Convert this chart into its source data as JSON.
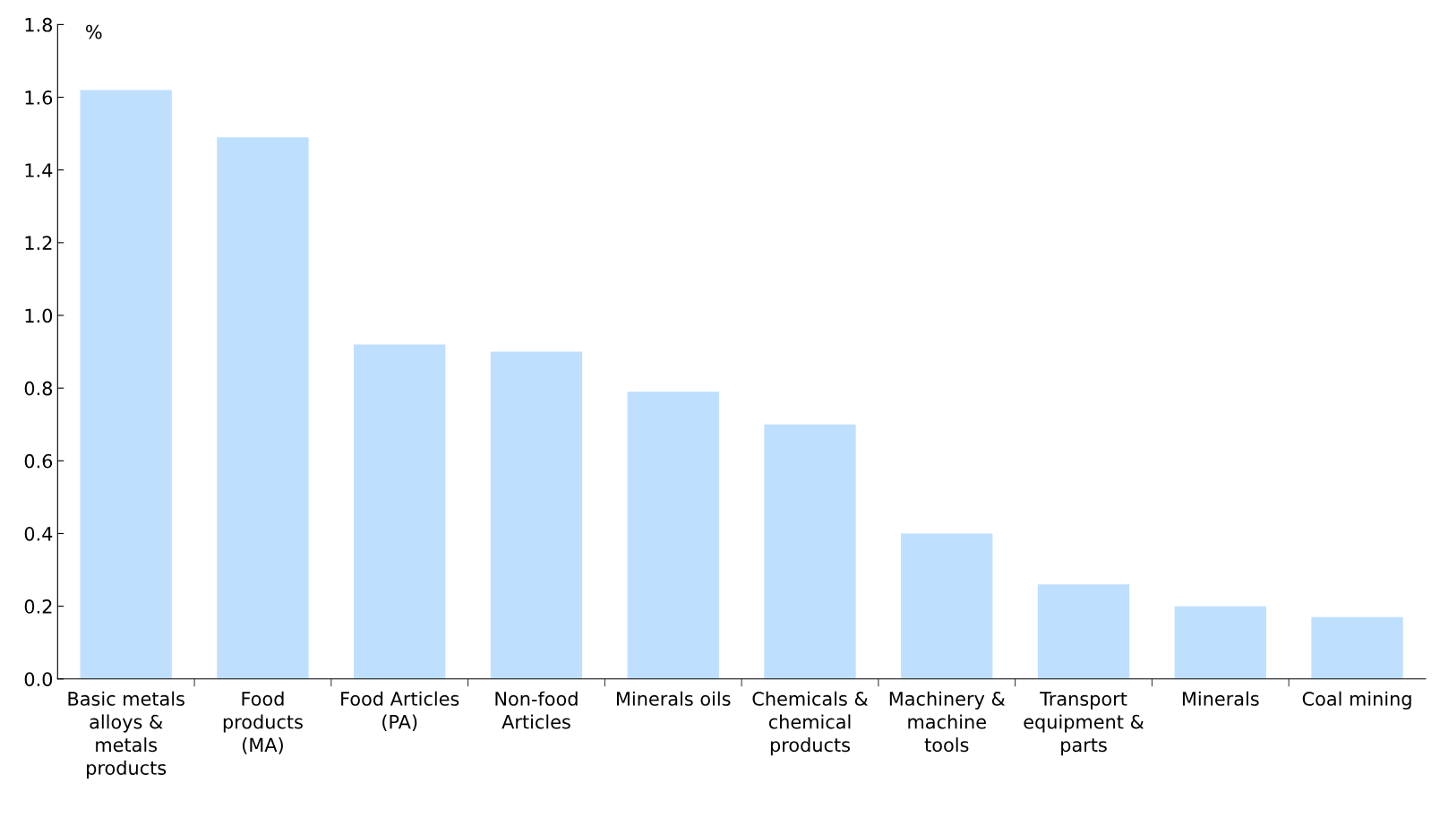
{
  "chart_data": {
    "type": "bar",
    "ylabel": "%",
    "categories": [
      "Basic metals\nalloys &\nmetals\nproducts",
      "Food\nproducts\n(MA)",
      "Food Articles\n(PA)",
      "Non-food\nArticles",
      "Minerals oils",
      "Chemicals &\nchemical\nproducts",
      "Machinery &\nmachine\ntools",
      "Transport\nequipment &\nparts",
      "Minerals",
      "Coal mining"
    ],
    "values": [
      1.62,
      1.49,
      0.92,
      0.9,
      0.79,
      0.7,
      0.4,
      0.26,
      0.2,
      0.17
    ],
    "color": "#bfdfff",
    "ylim": [
      0,
      1.8
    ],
    "yticks": [
      {
        "value": 0,
        "label": "0.0"
      },
      {
        "value": 0.2,
        "label": "0.2"
      },
      {
        "value": 0.4,
        "label": "0.4"
      },
      {
        "value": 0.6,
        "label": "0.6"
      },
      {
        "value": 0.8,
        "label": "0.8"
      },
      {
        "value": 1.0,
        "label": "1.0"
      },
      {
        "value": 1.2,
        "label": "1.2"
      },
      {
        "value": 1.4,
        "label": "1.4"
      },
      {
        "value": 1.6,
        "label": "1.6"
      },
      {
        "value": 1.8,
        "label": "1.8"
      }
    ],
    "grid": false
  }
}
